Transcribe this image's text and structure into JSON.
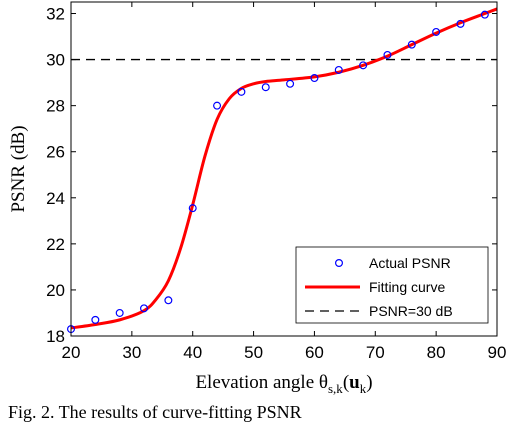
{
  "caption": "Fig. 2.  The results of curve-fitting PSNR",
  "chart_data": {
    "type": "scatter",
    "xlabel": "Elevation angle θs,k(uk)",
    "xlabel_parts": {
      "main": "Elevation angle θ",
      "sub": "s,k",
      "open": "(",
      "bold": "u",
      "bold_sub": "k",
      "close": ")"
    },
    "ylabel": "PSNR (dB)",
    "xlim": [
      20,
      90
    ],
    "ylim": [
      18,
      32.5
    ],
    "xticks": [
      20,
      30,
      40,
      50,
      60,
      70,
      80,
      90
    ],
    "yticks": [
      18,
      20,
      22,
      24,
      26,
      28,
      30,
      32
    ],
    "grid": false,
    "legend_position": "bottom-right",
    "series": [
      {
        "name": "Actual PSNR",
        "kind": "markers",
        "color": "#0000ff",
        "x": [
          20,
          24,
          28,
          32,
          36,
          40,
          44,
          48,
          52,
          56,
          60,
          64,
          68,
          72,
          76,
          80,
          84,
          88
        ],
        "y": [
          18.3,
          18.7,
          19.0,
          19.2,
          19.55,
          23.55,
          28.0,
          28.6,
          28.8,
          28.95,
          29.2,
          29.55,
          29.75,
          30.2,
          30.65,
          31.2,
          31.55,
          31.95
        ]
      },
      {
        "name": "Fitting curve",
        "kind": "line",
        "color": "#ff0000",
        "x": [
          20,
          24,
          28,
          32,
          34,
          36,
          38,
          40,
          42,
          44,
          46,
          48,
          50,
          52,
          55,
          60,
          64,
          68,
          72,
          76,
          80,
          84,
          88,
          90
        ],
        "y": [
          18.35,
          18.5,
          18.7,
          19.1,
          19.6,
          20.4,
          21.8,
          23.7,
          25.8,
          27.4,
          28.3,
          28.75,
          28.95,
          29.05,
          29.12,
          29.25,
          29.45,
          29.75,
          30.15,
          30.65,
          31.15,
          31.6,
          32.0,
          32.2
        ]
      },
      {
        "name": "PSNR=30 dB",
        "kind": "hline",
        "color": "#000000",
        "y": 30
      }
    ]
  }
}
